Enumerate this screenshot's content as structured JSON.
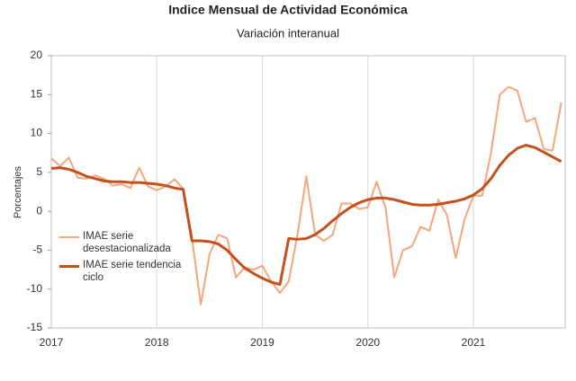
{
  "chart_data": {
    "type": "line",
    "title": "Indice Mensual de  Actividad Económica",
    "subtitle": "Variación interanual",
    "ylabel": "Porcentajes",
    "x": [
      2017,
      2017.083,
      2017.167,
      2017.25,
      2017.333,
      2017.417,
      2017.5,
      2017.583,
      2017.667,
      2017.75,
      2017.833,
      2017.917,
      2018,
      2018.083,
      2018.167,
      2018.25,
      2018.333,
      2018.417,
      2018.5,
      2018.583,
      2018.667,
      2018.75,
      2018.833,
      2018.917,
      2019,
      2019.083,
      2019.167,
      2019.25,
      2019.333,
      2019.417,
      2019.5,
      2019.583,
      2019.667,
      2019.75,
      2019.833,
      2019.917,
      2020,
      2020.083,
      2020.167,
      2020.25,
      2020.333,
      2020.417,
      2020.5,
      2020.583,
      2020.667,
      2020.75,
      2020.833,
      2020.917,
      2021,
      2021.083,
      2021.167,
      2021.25,
      2021.333,
      2021.417,
      2021.5,
      2021.583,
      2021.667,
      2021.75,
      2021.833
    ],
    "series": [
      {
        "name": "IMAE serie desestacionalizada",
        "color": "#f6a57c",
        "width": 2,
        "values": [
          6.8,
          5.8,
          6.9,
          4.3,
          4.2,
          4.6,
          4.2,
          3.3,
          3.5,
          3.0,
          5.6,
          3.2,
          2.7,
          3.2,
          4.1,
          2.9,
          -3.5,
          -12.0,
          -5.5,
          -3.0,
          -3.5,
          -8.5,
          -7.2,
          -7.5,
          -7.0,
          -9.0,
          -10.5,
          -9.0,
          -3.0,
          4.5,
          -3.0,
          -3.8,
          -3.0,
          1.0,
          1.0,
          0.3,
          0.5,
          3.8,
          0.5,
          -8.5,
          -5.0,
          -4.5,
          -2.0,
          -2.5,
          1.5,
          -0.5,
          -6.0,
          -1.0,
          2.0,
          2.0,
          7.5,
          15.0,
          16.0,
          15.5,
          11.5,
          12.0,
          8.0,
          7.8,
          14.0
        ]
      },
      {
        "name": "IMAE serie  tendencia ciclo",
        "color": "#c4501c",
        "width": 3,
        "values": [
          5.5,
          5.6,
          5.4,
          5.0,
          4.5,
          4.2,
          3.9,
          3.8,
          3.8,
          3.7,
          3.7,
          3.6,
          3.5,
          3.3,
          3.0,
          2.8,
          -3.8,
          -3.8,
          -3.9,
          -4.2,
          -5.0,
          -6.2,
          -7.3,
          -8.0,
          -8.6,
          -9.1,
          -9.4,
          -3.5,
          -3.6,
          -3.5,
          -3.0,
          -2.2,
          -1.2,
          -0.3,
          0.5,
          1.1,
          1.5,
          1.7,
          1.7,
          1.5,
          1.2,
          0.9,
          0.8,
          0.8,
          0.9,
          1.1,
          1.3,
          1.6,
          2.1,
          2.9,
          4.2,
          5.9,
          7.2,
          8.1,
          8.5,
          8.2,
          7.6,
          7.0,
          6.4
        ]
      }
    ],
    "xlim": [
      2017,
      2021.87
    ],
    "xticks": [
      2017,
      2018,
      2019,
      2020,
      2021
    ],
    "ylim": [
      -15,
      20
    ],
    "yticks": [
      -15,
      -10,
      -5,
      0,
      5,
      10,
      15,
      20
    ],
    "grid": "x",
    "legend": "lower left"
  }
}
